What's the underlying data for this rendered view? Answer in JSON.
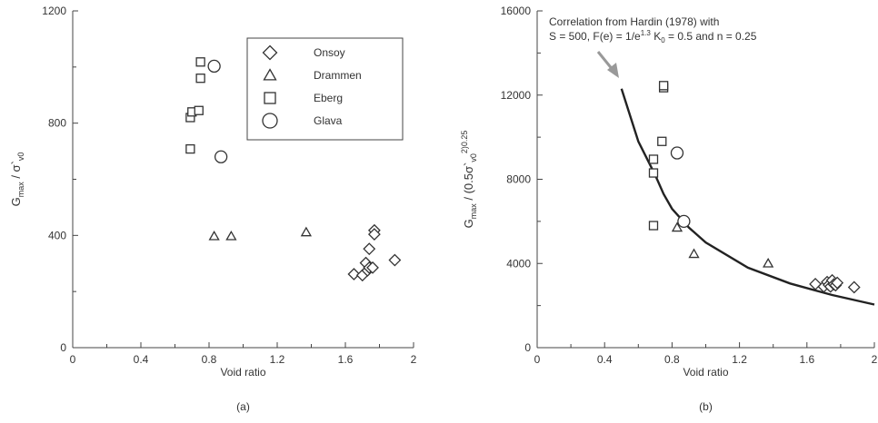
{
  "chart_data": [
    {
      "panel_label": "(a)",
      "type": "scatter",
      "xlabel": "Void ratio",
      "ylabel_main": "G",
      "ylabel_sub1": "max",
      "ylabel_mid": " / σ`",
      "ylabel_sub2": "v0",
      "xlim": [
        0,
        2
      ],
      "ylim": [
        0,
        1200
      ],
      "xticks": [
        "0",
        "0.4",
        "0.8",
        "1.2",
        "1.6",
        "2"
      ],
      "yticks": [
        "0",
        "400",
        "800",
        "1200"
      ],
      "legend_position": "top-right",
      "series": [
        {
          "name": "Onsoy",
          "marker": "diamond",
          "points": [
            [
              1.65,
              262
            ],
            [
              1.7,
              258
            ],
            [
              1.72,
              302
            ],
            [
              1.73,
              275
            ],
            [
              1.74,
              285
            ],
            [
              1.74,
              352
            ],
            [
              1.76,
              285
            ],
            [
              1.77,
              418
            ],
            [
              1.77,
              404
            ],
            [
              1.89,
              312
            ]
          ]
        },
        {
          "name": "Drammen",
          "marker": "triangle",
          "points": [
            [
              0.83,
              397
            ],
            [
              0.93,
              397
            ],
            [
              1.37,
              411
            ]
          ]
        },
        {
          "name": "Eberg",
          "marker": "square",
          "points": [
            [
              0.69,
              708
            ],
            [
              0.69,
              820
            ],
            [
              0.7,
              840
            ],
            [
              0.74,
              845
            ],
            [
              0.75,
              960
            ],
            [
              0.75,
              1018
            ]
          ]
        },
        {
          "name": "Glava",
          "marker": "circle",
          "points": [
            [
              0.83,
              1003
            ],
            [
              0.87,
              680
            ]
          ]
        }
      ]
    },
    {
      "panel_label": "(b)",
      "type": "scatter",
      "xlabel": "Void ratio",
      "ylabel_main": "G",
      "ylabel_sub1": "max",
      "ylabel_mid": " / (0.5σ`",
      "ylabel_sub2": "v0",
      "ylabel_sup": "2)0.25",
      "xlim": [
        0,
        2
      ],
      "ylim": [
        0,
        16000
      ],
      "xticks": [
        "0",
        "0.4",
        "0.8",
        "1.2",
        "1.6",
        "2"
      ],
      "yticks": [
        "0",
        "4000",
        "8000",
        "12000",
        "16000"
      ],
      "annotation_line1": "Correlation from Hardin (1978) with",
      "annotation_line2": "S = 500, F(e) = 1/e",
      "annotation_sup": "1.3",
      "annotation_line2b": " K",
      "annotation_sub": "0",
      "annotation_line2c": " = 0.5 and n = 0.25",
      "curve": [
        [
          0.5,
          12300
        ],
        [
          0.6,
          9800
        ],
        [
          0.7,
          8200
        ],
        [
          0.75,
          7300
        ],
        [
          0.8,
          6600
        ],
        [
          0.9,
          5700
        ],
        [
          1.0,
          5000
        ],
        [
          1.25,
          3800
        ],
        [
          1.5,
          3050
        ],
        [
          1.75,
          2500
        ],
        [
          2.0,
          2050
        ]
      ],
      "series": [
        {
          "name": "Onsoy",
          "marker": "diamond",
          "points": [
            [
              1.65,
              3020
            ],
            [
              1.7,
              2900
            ],
            [
              1.72,
              3120
            ],
            [
              1.73,
              2980
            ],
            [
              1.74,
              2900
            ],
            [
              1.75,
              3200
            ],
            [
              1.76,
              3010
            ],
            [
              1.77,
              2960
            ],
            [
              1.78,
              3080
            ],
            [
              1.88,
              2870
            ]
          ]
        },
        {
          "name": "Drammen",
          "marker": "triangle",
          "points": [
            [
              0.83,
              5700
            ],
            [
              0.93,
              4450
            ],
            [
              1.37,
              4000
            ]
          ]
        },
        {
          "name": "Eberg",
          "marker": "square",
          "points": [
            [
              0.69,
              5800
            ],
            [
              0.69,
              8300
            ],
            [
              0.69,
              8950
            ],
            [
              0.74,
              9800
            ],
            [
              0.75,
              12350
            ],
            [
              0.75,
              12450
            ]
          ]
        },
        {
          "name": "Glava",
          "marker": "circle",
          "points": [
            [
              0.83,
              9250
            ],
            [
              0.87,
              6000
            ]
          ]
        }
      ]
    }
  ]
}
